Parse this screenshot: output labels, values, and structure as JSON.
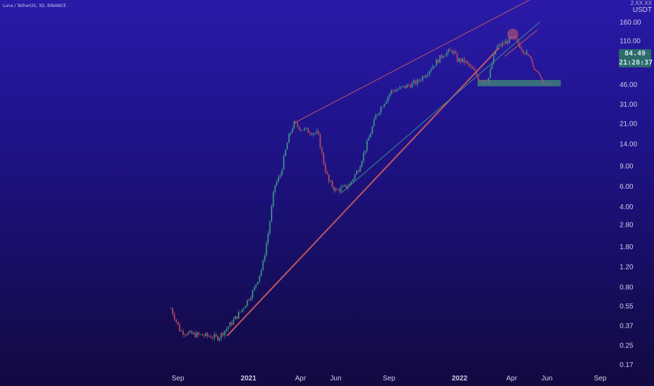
{
  "title": "Luna / TetherUS, 3D, BINANCE",
  "unit": "USDT",
  "unit_top": "2.XX.XX",
  "price_badge": {
    "price": "84.49",
    "countdown": "21:28:37"
  },
  "colors": {
    "candle_up": "#3f8f8a",
    "candle_down": "#b44a5c",
    "trendline": "#c0575f",
    "support_line": "#3e8f86",
    "support_zone": "#3e7f7a",
    "highlight_circle": "#c0576f"
  },
  "chart_data": {
    "type": "line",
    "title": "Luna / TetherUS, 3D, BINANCE",
    "xlabel": "",
    "ylabel": "",
    "log_scale": true,
    "x_ticks": [
      "Sep",
      "2021",
      "Apr",
      "Jun",
      "Sep",
      "2022",
      "Apr",
      "Jun",
      "Sep"
    ],
    "y_ticks": [
      0.17,
      0.25,
      0.37,
      0.55,
      0.8,
      1.2,
      1.8,
      2.8,
      4.0,
      6.0,
      9.0,
      14.0,
      21.0,
      31.0,
      46.0,
      110.0,
      160.0
    ],
    "y_tick_labels": [
      "0.17",
      "0.25",
      "0.37",
      "0.55",
      "0.80",
      "1.20",
      "1.80",
      "2.80",
      "4.00",
      "6.00",
      "9.00",
      "14.00",
      "21.00",
      "31.00",
      "46.00",
      "110.00",
      "160.00"
    ],
    "series": [
      {
        "values_x": [
          "2020-08-20",
          "2020-09-05",
          "2020-09-25",
          "2020-10-20",
          "2020-11-10",
          "2020-12-01",
          "2020-12-20",
          "2021-01-10",
          "2021-01-25",
          "2021-02-05",
          "2021-02-15",
          "2021-02-25",
          "2021-03-10",
          "2021-03-20",
          "2021-04-01",
          "2021-04-15",
          "2021-05-01",
          "2021-05-12",
          "2021-05-20",
          "2021-06-01",
          "2021-06-15",
          "2021-06-25",
          "2021-07-10",
          "2021-07-25",
          "2021-08-10",
          "2021-08-25",
          "2021-09-05",
          "2021-09-20",
          "2021-10-05",
          "2021-10-20",
          "2021-11-05",
          "2021-11-20",
          "2021-12-05",
          "2021-12-20",
          "2021-12-28",
          "2022-01-10",
          "2022-01-25",
          "2022-02-05",
          "2022-02-20",
          "2022-03-05",
          "2022-03-20",
          "2022-04-01",
          "2022-04-10",
          "2022-04-20",
          "2022-04-28"
        ],
        "values": [
          0.52,
          0.33,
          0.31,
          0.3,
          0.29,
          0.38,
          0.5,
          0.75,
          1.2,
          2.5,
          6.0,
          7.5,
          15.0,
          21.0,
          19.0,
          18.0,
          17.0,
          9.0,
          6.5,
          5.5,
          5.8,
          6.2,
          8.5,
          14.0,
          25.0,
          33.0,
          40.0,
          42.0,
          45.0,
          48.0,
          58.0,
          70.0,
          85.0,
          90.0,
          75.0,
          72.0,
          60.0,
          50.0,
          52.0,
          95.0,
          105.0,
          115.0,
          108.0,
          92.0,
          84.49
        ]
      }
    ],
    "trendlines": [
      {
        "name": "",
        "from": [
          "2021-03-20",
          21.0
        ],
        "to": [
          "2022-05-10",
          260.0
        ]
      },
      {
        "name": "",
        "from": [
          "2020-11-25",
          0.3
        ],
        "to": [
          "2022-03-10",
          95.0
        ]
      }
    ],
    "support_zone": {
      "from": "2022-02-01",
      "to": "2022-06-25",
      "low": 44.0,
      "high": 50.0
    },
    "projection": [
      [
        "2022-04-28",
        84.49
      ],
      [
        "2022-05-05",
        78.0
      ],
      [
        "2022-05-10",
        62.0
      ],
      [
        "2022-05-18",
        58.0
      ],
      [
        "2022-05-28",
        46.0
      ]
    ],
    "current_price": 84.49,
    "grid": false,
    "legend": "none"
  }
}
